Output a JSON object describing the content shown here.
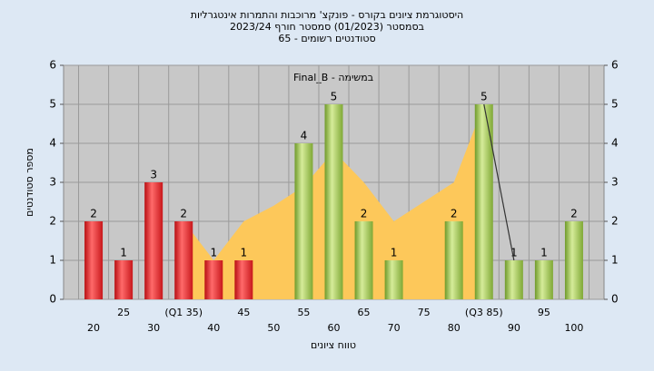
{
  "chart_data": {
    "type": "bar",
    "title": [
      "היסטוגרמת ציונים בקורס - פונקצ' מרוכבות והתמרות אינטגרליות",
      "בסמסטר (01/2023)  סמסטר חורף 2023/24",
      "65 - סטודנטים רשומים"
    ],
    "subtitle": "Final_B - במשימה",
    "x_label": "טווח ציונים",
    "y_label": "מספר סטודנטים",
    "categories": [
      "20",
      "25",
      "30",
      "(Q1 35)",
      "40",
      "45",
      "50",
      "55",
      "60",
      "65",
      "70",
      "75",
      "80",
      "(Q3 85)",
      "90",
      "95",
      "100"
    ],
    "values": [
      2,
      1,
      3,
      2,
      1,
      1,
      0,
      4,
      5,
      2,
      1,
      0,
      2,
      5,
      1,
      1,
      2
    ],
    "colors": [
      "red",
      "red",
      "red",
      "red",
      "red",
      "red",
      "red",
      "green",
      "green",
      "green",
      "green",
      "green",
      "green",
      "green",
      "green",
      "green",
      "green"
    ],
    "area": {
      "color": "#fdc85a",
      "values": [
        null,
        null,
        null,
        2,
        1,
        2,
        2.4,
        2.9,
        3.8,
        3,
        2,
        2.5,
        3,
        5,
        null,
        null,
        null
      ]
    },
    "line": {
      "color": "#333333",
      "values": [
        null,
        null,
        null,
        null,
        null,
        null,
        null,
        null,
        null,
        null,
        null,
        null,
        null,
        5,
        1,
        null,
        null
      ]
    },
    "ylim": [
      0,
      6
    ],
    "yticks": [
      0,
      1,
      2,
      3,
      4,
      5,
      6
    ],
    "y2lim": [
      0,
      6
    ],
    "y2ticks": [
      0,
      1,
      2,
      3,
      4,
      5,
      6
    ],
    "grid": true
  }
}
